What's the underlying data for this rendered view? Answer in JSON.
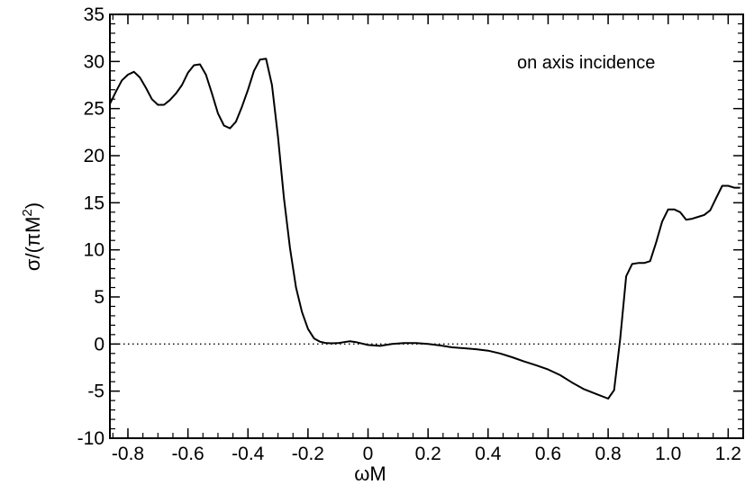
{
  "chart_data": {
    "type": "line",
    "xlabel": "ωM",
    "ylabel_base": "σ/(πM",
    "ylabel_sup": "2",
    "ylabel_close": ")",
    "annotation": "on axis incidence",
    "xlim": [
      -0.86,
      1.25
    ],
    "ylim": [
      -10,
      35
    ],
    "x_ticks": [
      -0.8,
      -0.6,
      -0.4,
      -0.2,
      0,
      0.2,
      0.4,
      0.6,
      0.8,
      1.0,
      1.2
    ],
    "x_tick_labels": [
      "-0.8",
      "-0.6",
      "-0.4",
      "-0.2",
      "0",
      "0.2",
      "0.4",
      "0.6",
      "0.8",
      "1.0",
      "1.2"
    ],
    "y_ticks": [
      -10,
      -5,
      0,
      5,
      10,
      15,
      20,
      25,
      30,
      35
    ],
    "y_tick_labels": [
      "-10",
      "-5",
      "0",
      "5",
      "10",
      "15",
      "20",
      "25",
      "30",
      "35"
    ],
    "reference_line": {
      "y": 0,
      "style": "dotted"
    },
    "grid": false,
    "series": [
      {
        "color": "#000000",
        "x": [
          -0.86,
          -0.84,
          -0.82,
          -0.8,
          -0.78,
          -0.76,
          -0.74,
          -0.72,
          -0.7,
          -0.68,
          -0.66,
          -0.64,
          -0.62,
          -0.6,
          -0.58,
          -0.56,
          -0.54,
          -0.52,
          -0.5,
          -0.48,
          -0.46,
          -0.44,
          -0.42,
          -0.4,
          -0.38,
          -0.36,
          -0.34,
          -0.32,
          -0.3,
          -0.28,
          -0.26,
          -0.24,
          -0.22,
          -0.2,
          -0.18,
          -0.16,
          -0.14,
          -0.12,
          -0.1,
          -0.08,
          -0.06,
          -0.04,
          -0.02,
          0.0,
          0.04,
          0.08,
          0.12,
          0.16,
          0.2,
          0.24,
          0.28,
          0.32,
          0.36,
          0.4,
          0.44,
          0.48,
          0.52,
          0.56,
          0.6,
          0.64,
          0.68,
          0.72,
          0.76,
          0.8,
          0.82,
          0.84,
          0.86,
          0.88,
          0.9,
          0.92,
          0.94,
          0.96,
          0.98,
          1.0,
          1.02,
          1.04,
          1.06,
          1.08,
          1.1,
          1.12,
          1.14,
          1.16,
          1.18,
          1.2,
          1.22,
          1.24
        ],
        "y": [
          25.5,
          26.8,
          28.0,
          28.6,
          28.9,
          28.3,
          27.2,
          26.0,
          25.4,
          25.4,
          25.9,
          26.6,
          27.5,
          28.8,
          29.6,
          29.7,
          28.6,
          26.6,
          24.5,
          23.2,
          22.9,
          23.6,
          25.2,
          27.0,
          29.0,
          30.2,
          30.3,
          27.5,
          22.0,
          15.5,
          10.2,
          6.0,
          3.4,
          1.6,
          0.6,
          0.25,
          0.1,
          0.08,
          0.1,
          0.2,
          0.3,
          0.2,
          0.05,
          -0.1,
          -0.2,
          0.0,
          0.1,
          0.1,
          0.0,
          -0.15,
          -0.35,
          -0.45,
          -0.55,
          -0.7,
          -1.0,
          -1.4,
          -1.85,
          -2.25,
          -2.7,
          -3.3,
          -4.1,
          -4.8,
          -5.3,
          -5.8,
          -4.9,
          0.5,
          7.2,
          8.5,
          8.6,
          8.6,
          8.8,
          10.8,
          13.0,
          14.3,
          14.3,
          14.0,
          13.2,
          13.3,
          13.5,
          13.7,
          14.2,
          15.5,
          16.8,
          16.8,
          16.6,
          16.6
        ]
      }
    ]
  }
}
